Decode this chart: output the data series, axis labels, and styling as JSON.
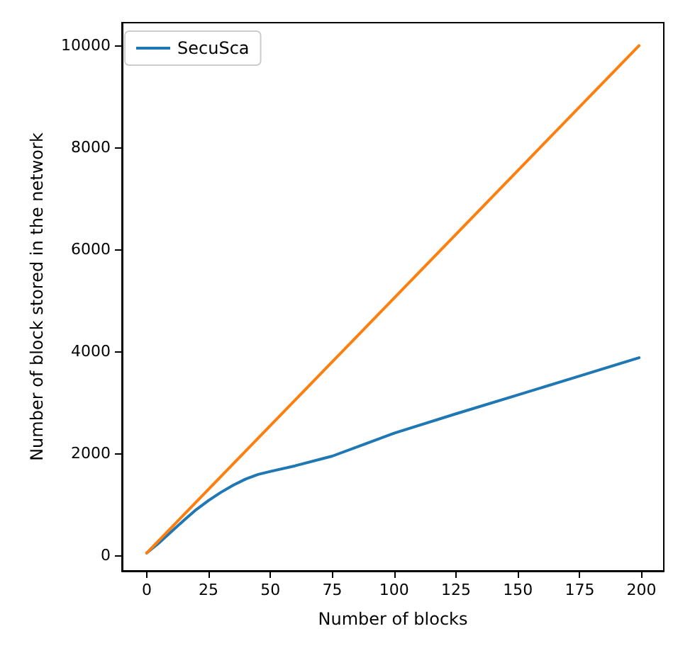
{
  "chart_data": {
    "type": "line",
    "xlabel": "Number of blocks",
    "ylabel": "Number of block stored in the network",
    "xlim": [
      -10,
      209
    ],
    "ylim": [
      -300,
      10450
    ],
    "xticks": [
      0,
      25,
      50,
      75,
      100,
      125,
      150,
      175,
      200
    ],
    "yticks": [
      0,
      2000,
      4000,
      6000,
      8000,
      10000
    ],
    "grid": false,
    "legend": "top left",
    "marker": "none",
    "line_style": "solid",
    "series": [
      {
        "name": "SecuSca",
        "color": "#1f77b4",
        "x": [
          0,
          5,
          10,
          15,
          20,
          25,
          30,
          35,
          40,
          45,
          50,
          60,
          75,
          100,
          125,
          150,
          175,
          199
        ],
        "values": [
          50,
          250,
          470,
          690,
          900,
          1080,
          1240,
          1380,
          1500,
          1590,
          1650,
          1760,
          1950,
          2400,
          2780,
          3150,
          3520,
          3880
        ]
      },
      {
        "color": "#ff7f0e",
        "x": [
          0,
          199
        ],
        "values": [
          50,
          10000
        ]
      }
    ]
  }
}
